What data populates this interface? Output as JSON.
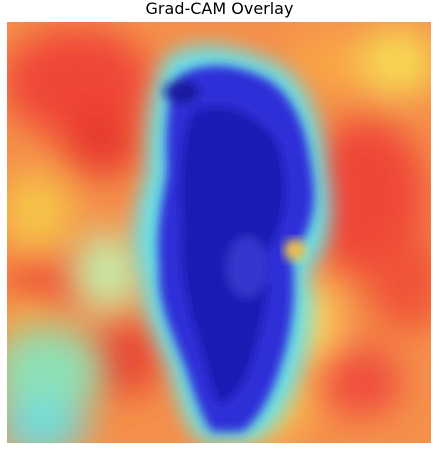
{
  "figure": {
    "title": "Grad-CAM Overlay"
  },
  "heatmap": {
    "colormap": "jet",
    "low_color": "#1a1acc",
    "mid_color": "#66e6e6",
    "high_color": "#ff3333"
  }
}
